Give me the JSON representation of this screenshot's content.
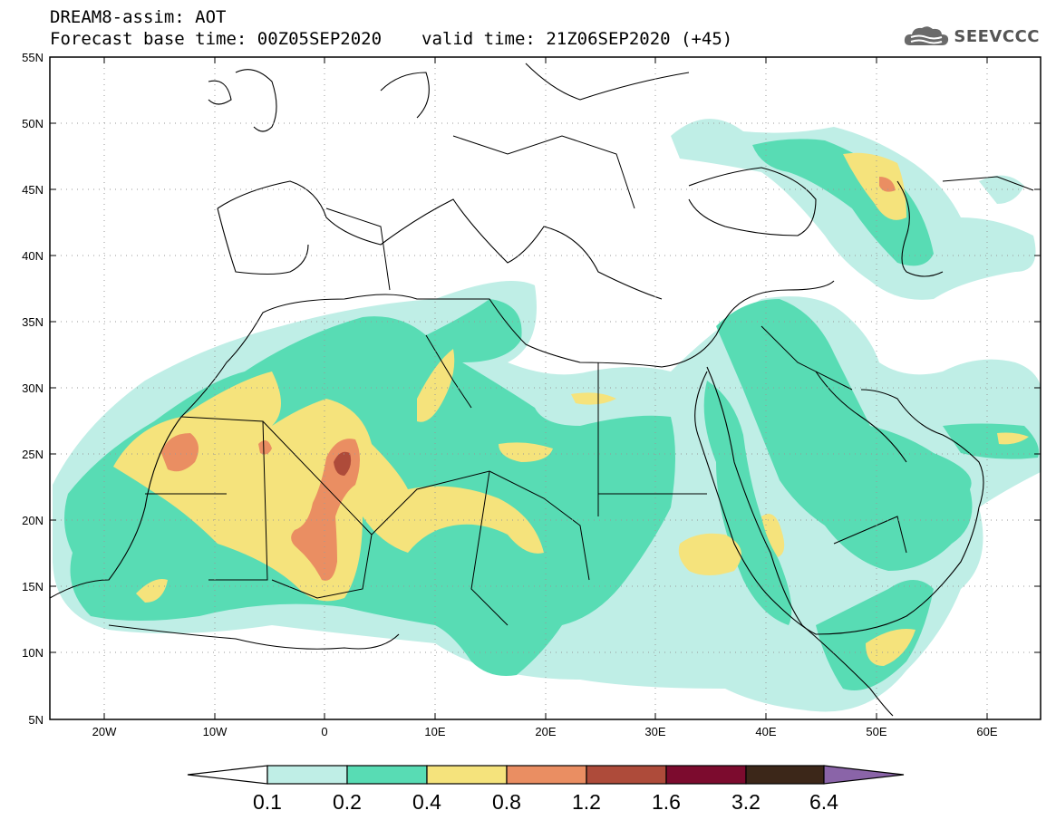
{
  "header": {
    "line1": "DREAM8-assim: AOT",
    "base_time": "Forecast base time: 00Z05SEP2020",
    "valid_time": "valid time: 21Z06SEP2020 (+45)"
  },
  "logo": {
    "text": "SEEVCCC",
    "icon": "cloud-icon"
  },
  "map": {
    "lat_ticks": [
      "55N",
      "50N",
      "45N",
      "40N",
      "35N",
      "30N",
      "25N",
      "20N",
      "15N",
      "10N",
      "5N"
    ],
    "lon_ticks": [
      "20W",
      "10W",
      "0",
      "10E",
      "20E",
      "30E",
      "40E",
      "50E",
      "60E"
    ]
  },
  "colorbar": {
    "labels": [
      "0.1",
      "0.2",
      "0.4",
      "0.8",
      "1.2",
      "1.6",
      "3.2",
      "6.4"
    ],
    "colors": [
      "#bfeee6",
      "#58dcb4",
      "#f5e37c",
      "#ea8e62",
      "#ae4b3a",
      "#7c0b2e",
      "#3c2719",
      "#8a64a8"
    ]
  }
}
